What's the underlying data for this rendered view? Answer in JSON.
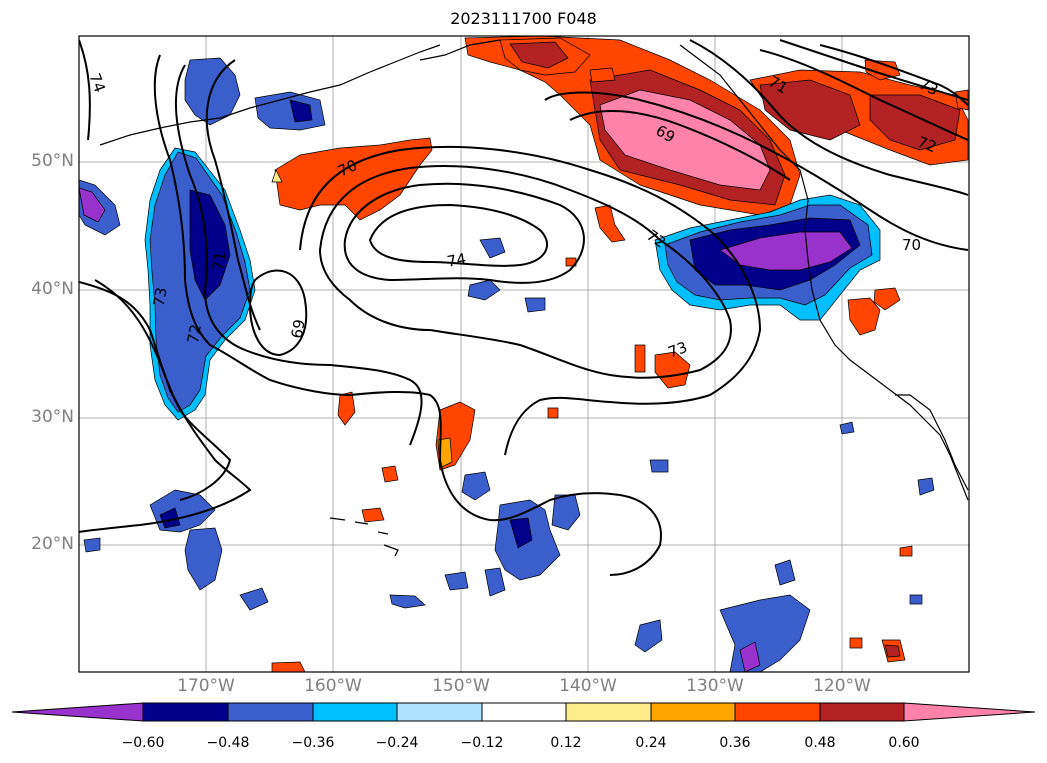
{
  "title": "2023111700 F048",
  "lat_labels": [
    "50°N",
    "40°N",
    "30°N",
    "20°N"
  ],
  "lon_labels": [
    "170°W",
    "160°W",
    "150°W",
    "140°W",
    "130°W",
    "120°W"
  ],
  "colorbar": {
    "colors": [
      "#9932cc",
      "#00008b",
      "#3a5fcd",
      "#00bfff",
      "#b0e2ff",
      "#ffffff",
      "#ffec8b",
      "#ffa500",
      "#ff4500",
      "#b22222",
      "#ff82ab"
    ],
    "tick_labels": [
      "−0.60",
      "−0.48",
      "−0.36",
      "−0.24",
      "−0.12",
      "0.12",
      "0.24",
      "0.36",
      "0.48",
      "0.60"
    ]
  },
  "contour_labels": [
    "74",
    "70",
    "71",
    "73",
    "72",
    "69",
    "74",
    "72",
    "69",
    "73",
    "70",
    "73",
    "72",
    "71"
  ]
}
